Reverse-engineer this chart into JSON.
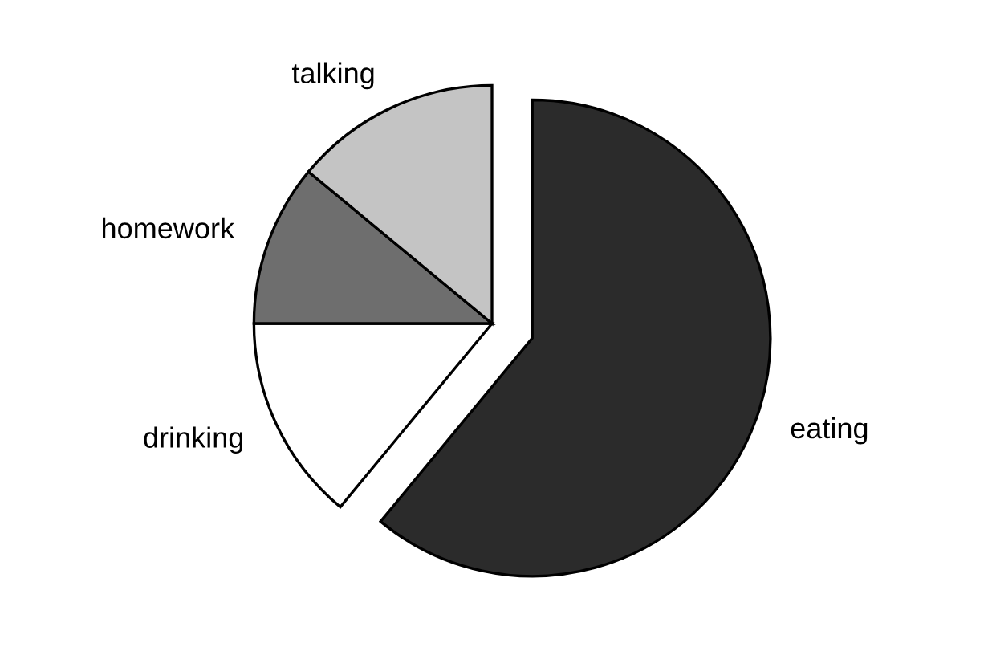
{
  "chart_data": {
    "type": "pie",
    "categories": [
      "eating",
      "drinking",
      "homework",
      "talking"
    ],
    "values": [
      61,
      14,
      11,
      14
    ],
    "colors": [
      "#2b2b2b",
      "#ffffff",
      "#6e6e6e",
      "#c4c4c4"
    ]
  }
}
